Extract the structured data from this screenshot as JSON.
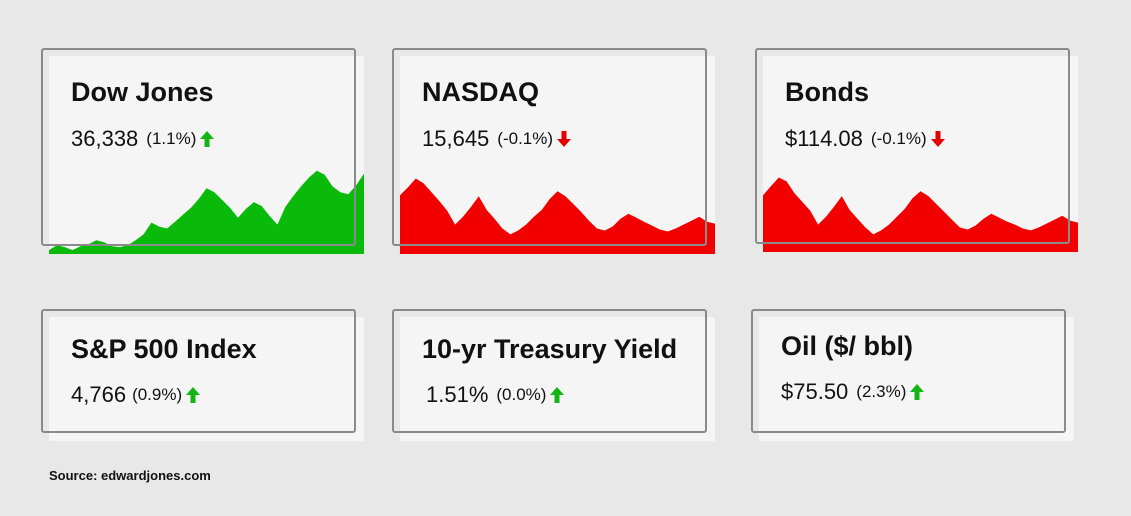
{
  "colors": {
    "up": "#0aba0a",
    "down": "#f20000",
    "arrow_up": "#12b512",
    "arrow_down": "#e40000"
  },
  "cards": [
    {
      "title": "Dow Jones",
      "value": "36,338",
      "change": "(1.1%)",
      "direction": "up",
      "icon": "arrow-up-icon"
    },
    {
      "title": "NASDAQ",
      "value": "15,645",
      "change": "(-0.1%)",
      "direction": "down",
      "icon": "arrow-down-icon"
    },
    {
      "title": "Bonds",
      "value": "$114.08",
      "change": "(-0.1%)",
      "direction": "down",
      "icon": "arrow-down-icon"
    },
    {
      "title": "S&P 500 Index",
      "value": "4,766",
      "change": "(0.9%)",
      "direction": "up",
      "icon": "arrow-up-icon"
    },
    {
      "title": "10-yr Treasury Yield",
      "value": "1.51%",
      "change": "(0.0%)",
      "direction": "up",
      "icon": "arrow-up-icon"
    },
    {
      "title": "Oil ($/ bbl)",
      "value": "$75.50",
      "change": "(2.3%)",
      "direction": "up",
      "icon": "arrow-up-icon"
    }
  ],
  "source": "Source: edwardjones.com",
  "chart_data": [
    {
      "type": "area",
      "title": "Dow Jones",
      "direction": "up",
      "values": [
        4,
        9,
        7,
        4,
        8,
        10,
        14,
        12,
        8,
        7,
        9,
        14,
        20,
        32,
        28,
        26,
        33,
        40,
        47,
        56,
        67,
        63,
        55,
        47,
        37,
        46,
        53,
        49,
        39,
        30,
        48,
        59,
        69,
        78,
        85,
        81,
        69,
        63,
        61,
        70,
        82
      ]
    },
    {
      "type": "area",
      "title": "NASDAQ",
      "direction": "down",
      "values": [
        60,
        68,
        77,
        72,
        63,
        54,
        44,
        30,
        38,
        48,
        59,
        45,
        36,
        26,
        20,
        24,
        30,
        38,
        45,
        56,
        64,
        59,
        51,
        43,
        34,
        26,
        24,
        28,
        36,
        41,
        37,
        33,
        29,
        25,
        23,
        26,
        30,
        34,
        38,
        33,
        31
      ]
    },
    {
      "type": "area",
      "title": "Bonds",
      "direction": "down",
      "values": [
        58,
        67,
        76,
        72,
        60,
        51,
        42,
        28,
        36,
        46,
        57,
        43,
        34,
        25,
        18,
        22,
        28,
        36,
        44,
        55,
        62,
        57,
        49,
        41,
        33,
        25,
        23,
        27,
        34,
        39,
        35,
        31,
        28,
        24,
        22,
        25,
        29,
        33,
        37,
        32,
        30
      ]
    }
  ]
}
